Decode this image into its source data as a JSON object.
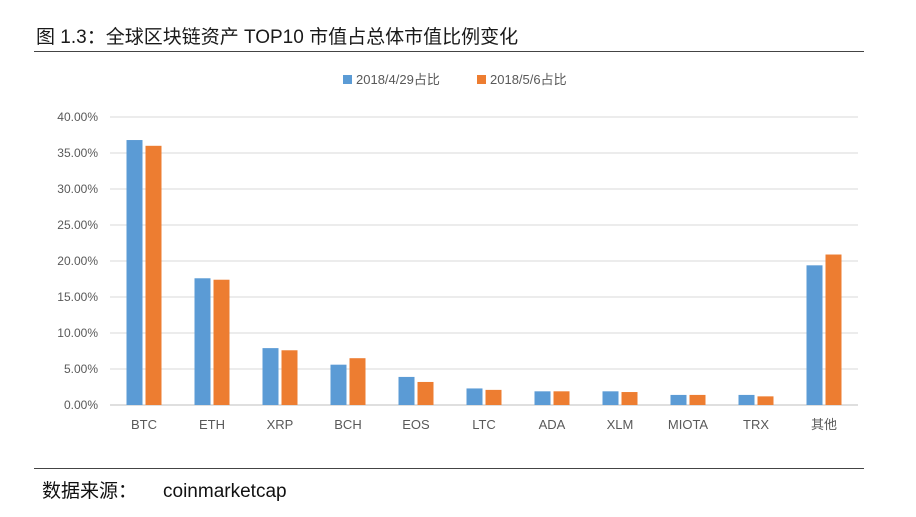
{
  "figure": {
    "title": "图 1.3：全球区块链资产 TOP10 市值占总体市值比例变化",
    "source_label": "数据来源：",
    "source_value": "coinmarketcap"
  },
  "colors": {
    "series1": "#5b9bd5",
    "series2": "#ed7d31",
    "grid": "#d9d9d9",
    "axis": "#bfbfbf"
  },
  "chart_data": {
    "type": "bar",
    "title": "",
    "xlabel": "",
    "ylabel": "",
    "categories": [
      "BTC",
      "ETH",
      "XRP",
      "BCH",
      "EOS",
      "LTC",
      "ADA",
      "XLM",
      "MIOTA",
      "TRX",
      "其他"
    ],
    "series": [
      {
        "name": "2018/4/29占比",
        "values": [
          36.8,
          17.6,
          7.9,
          5.6,
          3.9,
          2.3,
          1.9,
          1.9,
          1.4,
          1.4,
          19.4
        ]
      },
      {
        "name": "2018/5/6占比",
        "values": [
          36.0,
          17.4,
          7.6,
          6.5,
          3.2,
          2.1,
          1.9,
          1.8,
          1.4,
          1.2,
          20.9
        ]
      }
    ],
    "ylim": [
      0,
      40
    ],
    "yticks": [
      "0.00%",
      "5.00%",
      "10.00%",
      "15.00%",
      "20.00%",
      "25.00%",
      "30.00%",
      "35.00%",
      "40.00%"
    ],
    "grid": true,
    "legend_position": "top-center"
  }
}
